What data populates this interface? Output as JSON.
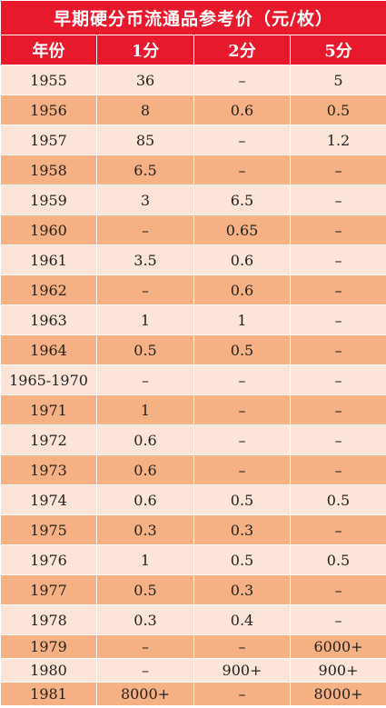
{
  "title": "早期硬分币流通品参考价（元/枚）",
  "headers": [
    "年份",
    "1分",
    "2分",
    "5分"
  ],
  "rows": [
    [
      "1955",
      "36",
      "–",
      "5"
    ],
    [
      "1956",
      "8",
      "0.6",
      "0.5"
    ],
    [
      "1957",
      "85",
      "–",
      "1.2"
    ],
    [
      "1958",
      "6.5",
      "–",
      "–"
    ],
    [
      "1959",
      "3",
      "6.5",
      "–"
    ],
    [
      "1960",
      "–",
      "0.65",
      "–"
    ],
    [
      "1961",
      "3.5",
      "0.6",
      "–"
    ],
    [
      "1962",
      "–",
      "0.6",
      "–"
    ],
    [
      "1963",
      "1",
      "1",
      "–"
    ],
    [
      "1964",
      "0.5",
      "0.5",
      "–"
    ],
    [
      "1965-1970",
      "–",
      "–",
      "–"
    ],
    [
      "1971",
      "1",
      "–",
      "–"
    ],
    [
      "1972",
      "0.6",
      "–",
      "–"
    ],
    [
      "1973",
      "0.6",
      "–",
      "–"
    ],
    [
      "1974",
      "0.6",
      "0.5",
      "0.5"
    ],
    [
      "1975",
      "0.3",
      "0.3",
      "–"
    ],
    [
      "1976",
      "1",
      "0.5",
      "0.5"
    ],
    [
      "1977",
      "0.5",
      "0.3",
      "–"
    ],
    [
      "1978",
      "0.3",
      "0.4",
      "–"
    ],
    [
      "1979",
      "–",
      "–",
      "6000+"
    ],
    [
      "1980",
      "–",
      "900+",
      "900+"
    ],
    [
      "1981",
      "8000+",
      "–",
      "8000+"
    ]
  ],
  "colors": {
    "header_red": "#e8192c",
    "row_light": "#fce4d8",
    "row_dark": "#f5b183"
  }
}
